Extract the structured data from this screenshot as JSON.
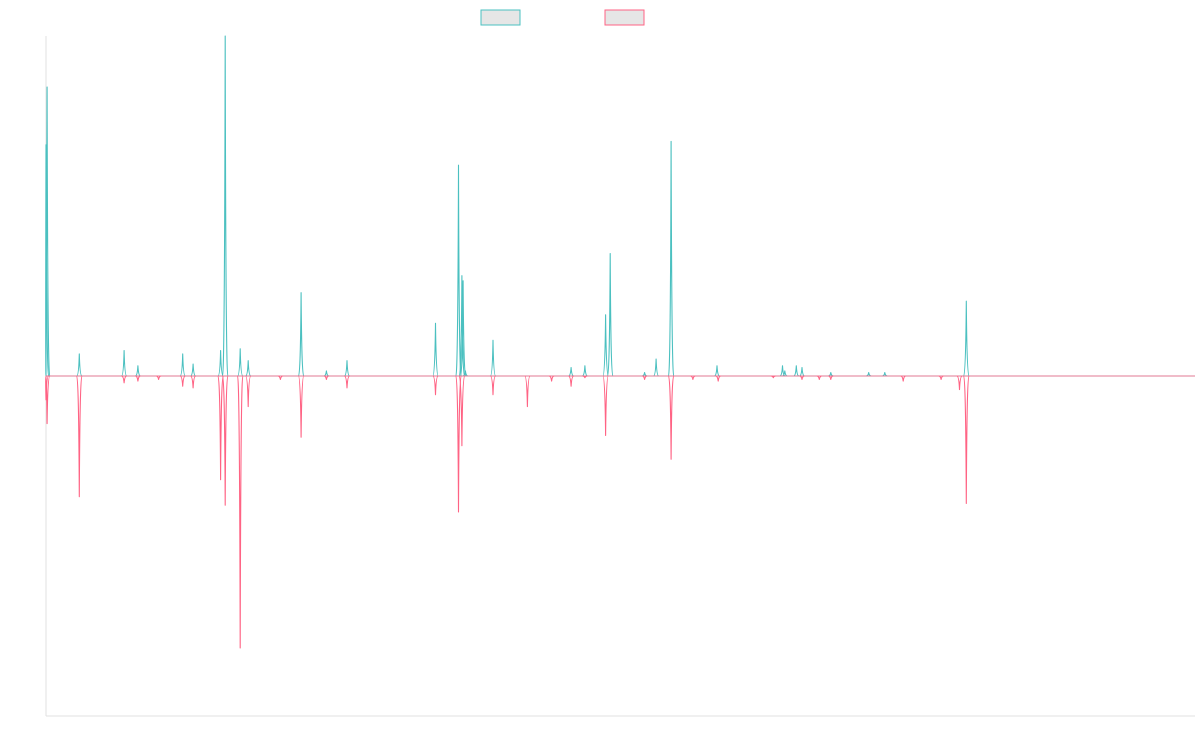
{
  "chart_data": {
    "type": "line",
    "title": "",
    "xlabel": "",
    "ylabel": "",
    "grid": false,
    "legend_position": "top",
    "xlim": [
      0,
      1000
    ],
    "ylim": [
      -100,
      100
    ],
    "x_ticks_visible": false,
    "y_ticks_visible": false,
    "series": [
      {
        "name": "",
        "color": "#4bc0c0",
        "legend_fill": "#e6e6e6",
        "direction": "up",
        "peaks": [
          [
            0,
            68
          ],
          [
            1,
            85
          ],
          [
            29,
            6.5
          ],
          [
            68,
            7.5
          ],
          [
            80,
            3
          ],
          [
            119,
            6.5
          ],
          [
            128,
            3.5
          ],
          [
            152,
            7.5
          ],
          [
            156,
            100
          ],
          [
            169,
            8
          ],
          [
            176,
            4.5
          ],
          [
            222,
            24.5
          ],
          [
            244,
            1.5
          ],
          [
            262,
            4.5
          ],
          [
            339,
            15.5
          ],
          [
            359,
            62
          ],
          [
            362,
            29.5
          ],
          [
            363,
            28
          ],
          [
            365,
            1.5
          ],
          [
            389,
            10.5
          ],
          [
            457,
            2.5
          ],
          [
            469,
            3
          ],
          [
            487,
            18
          ],
          [
            491,
            36
          ],
          [
            521,
            1
          ],
          [
            531,
            5
          ],
          [
            544,
            69
          ],
          [
            584,
            3
          ],
          [
            641,
            3
          ],
          [
            643,
            1.5
          ],
          [
            653,
            3
          ],
          [
            658,
            2.5
          ],
          [
            683,
            1
          ],
          [
            716,
            1
          ],
          [
            730,
            1
          ],
          [
            801,
            22
          ]
        ]
      },
      {
        "name": "",
        "color": "#ff6384",
        "legend_fill": "#e6e6e6",
        "direction": "down",
        "peaks": [
          [
            0,
            7
          ],
          [
            1,
            14
          ],
          [
            29,
            35.5
          ],
          [
            68,
            2
          ],
          [
            80,
            1.5
          ],
          [
            98,
            1
          ],
          [
            119,
            3
          ],
          [
            128,
            3.5
          ],
          [
            152,
            30.5
          ],
          [
            156,
            38
          ],
          [
            169,
            80
          ],
          [
            176,
            9
          ],
          [
            204,
            1
          ],
          [
            222,
            18
          ],
          [
            244,
            1
          ],
          [
            262,
            3.5
          ],
          [
            339,
            5.5
          ],
          [
            359,
            40
          ],
          [
            362,
            20.5
          ],
          [
            389,
            5.5
          ],
          [
            419,
            9
          ],
          [
            440,
            1.5
          ],
          [
            457,
            3
          ],
          [
            469,
            0.5
          ],
          [
            487,
            17.5
          ],
          [
            521,
            1
          ],
          [
            544,
            24.5
          ],
          [
            563,
            1
          ],
          [
            585,
            1.5
          ],
          [
            633,
            0.5
          ],
          [
            658,
            1
          ],
          [
            673,
            1
          ],
          [
            683,
            1
          ],
          [
            746,
            1.5
          ],
          [
            779,
            1
          ],
          [
            795,
            4
          ],
          [
            801,
            37.5
          ]
        ]
      }
    ]
  }
}
